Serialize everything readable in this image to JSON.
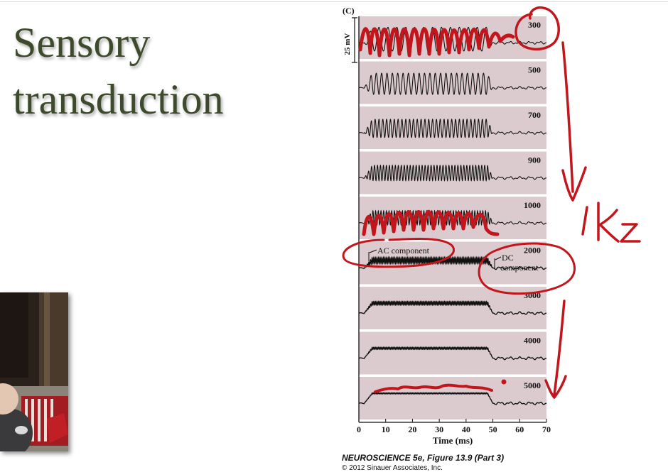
{
  "slide": {
    "title_line1": "Sensory",
    "title_line2": "transduction"
  },
  "figure": {
    "panel_label": "(C)",
    "caption_title": "NEUROSCIENCE 5e, Figure 13.9 (Part 3)",
    "copyright": "© 2012 Sinauer Associates, Inc."
  },
  "chart_data": {
    "type": "line",
    "title": "",
    "xlabel": "Time (ms)",
    "xlim": [
      0,
      70
    ],
    "xticks": [
      0,
      10,
      20,
      30,
      40,
      50,
      60,
      70
    ],
    "scale_bar": "25 mV",
    "stimulus_window_ms": [
      2,
      50
    ],
    "series": [
      {
        "name": "300",
        "stimulus_frequency_hz": 300
      },
      {
        "name": "500",
        "stimulus_frequency_hz": 500
      },
      {
        "name": "700",
        "stimulus_frequency_hz": 700
      },
      {
        "name": "900",
        "stimulus_frequency_hz": 900
      },
      {
        "name": "1000",
        "stimulus_frequency_hz": 1000
      },
      {
        "name": "2000",
        "stimulus_frequency_hz": 2000
      },
      {
        "name": "3000",
        "stimulus_frequency_hz": 3000
      },
      {
        "name": "4000",
        "stimulus_frequency_hz": 4000
      },
      {
        "name": "5000",
        "stimulus_frequency_hz": 5000
      }
    ],
    "annotations": [
      "AC component",
      "DC component"
    ]
  },
  "handwriting": {
    "note": "1kz"
  },
  "colors": {
    "title": "#3e4a2c",
    "panel_bg": "#dccbce",
    "trace": "#111111",
    "ink": "#c3161c"
  }
}
